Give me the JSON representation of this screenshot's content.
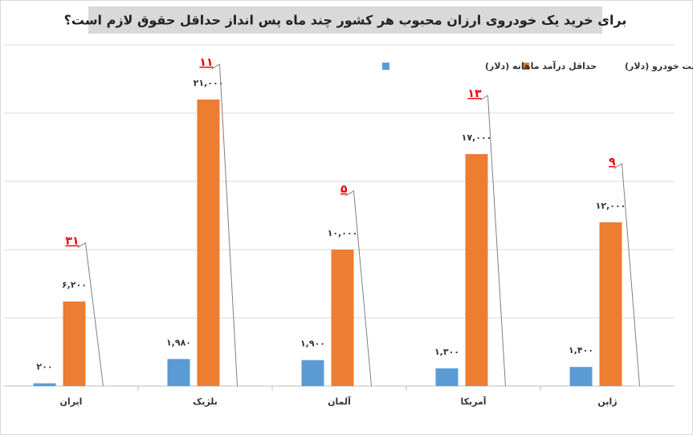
{
  "chart_data": {
    "type": "bar",
    "title": "برای خرید یک خودروی ارزان محبوب هر کشور چند ماه پس انداز حداقل حقوق لازم است؟",
    "categories": [
      "ایران",
      "بلژیک",
      "آلمان",
      "آمریکا",
      "ژاپن"
    ],
    "series": [
      {
        "name": "حداقل درآمد ماهانه (دلار)",
        "color": "#5b9bd5",
        "values": [
          200,
          1980,
          1900,
          1300,
          1400
        ],
        "value_labels": [
          "۲۰۰",
          "۱,۹۸۰",
          "۱,۹۰۰",
          "۱,۳۰۰",
          "۱,۴۰۰"
        ]
      },
      {
        "name": "قیمت خودرو (دلار)",
        "color": "#ed7d31",
        "values": [
          6200,
          21000,
          10000,
          17000,
          12000
        ],
        "value_labels": [
          "۶,۲۰۰",
          "۲۱,۰۰۰",
          "۱۰,۰۰۰",
          "۱۷,۰۰۰",
          "۱۲,۰۰۰"
        ]
      }
    ],
    "annotations": {
      "values": [
        31,
        11,
        5,
        13,
        9
      ],
      "value_labels": [
        "۳۱",
        "۱۱",
        "۵",
        "۱۳",
        "۹"
      ],
      "color": "#e00000"
    },
    "ylim": [
      0,
      25000
    ],
    "yticks": [
      0,
      5000,
      10000,
      15000,
      20000,
      25000
    ],
    "grid": true
  }
}
